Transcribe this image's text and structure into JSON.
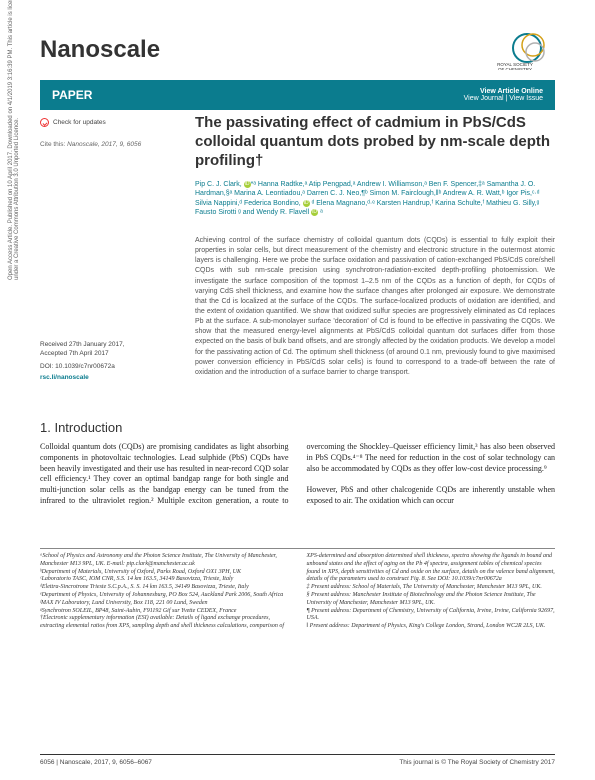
{
  "license_sidebar": "Open Access Article. Published on 10 April 2017. Downloaded on 4/1/2019 3:16:39 PM. This article is licensed under a Creative Commons Attribution 3.0 Unported Licence.",
  "header": {
    "journal": "Nanoscale"
  },
  "paper_bar": {
    "label": "PAPER",
    "view_online": "View Article Online",
    "view_issue": "View Journal | View Issue"
  },
  "check_updates": "Check for updates",
  "cite": {
    "prefix": "Cite this:",
    "ref": "Nanoscale, 2017, 9, 6056"
  },
  "title": "The passivating effect of cadmium in PbS/CdS colloidal quantum dots probed by nm-scale depth profiling†",
  "authors_html": "Pip C. J. Clark, <span class='orcid-icon' data-name='orcid-icon' data-interactable='false'>iD</span>*ᵃ Hanna Radtke,ᵃ Atip Pengpad,ᵃ Andrew I. Williamson,ᵃ Ben F. Spencer,‡ᵃ Samantha J. O. Hardman,§ᵃ Marina A. Leontiadou,ᵃ Darren C. J. Neo,¶ᵇ Simon M. Fairclough,‖ᵇ Andrew A. R. Watt,ᵇ Igor Pis,ᶜ·ᵈ Silvia Nappini,ᵈ Federica Bondino, <span class='orcid-icon' data-name='orcid-icon' data-interactable='false'>iD</span> ᵈ Elena Magnano,ᵈ·ᵉ Karsten Handrup,ᶠ Karina Schulte,ᶠ Mathieu G. Silly,ᵍ Fausto Sirotti ᵍ and Wendy R. Flavell <span class='orcid-icon' data-name='orcid-icon' data-interactable='false'>iD</span> ᵃ",
  "dates": {
    "received": "Received 27th January 2017,",
    "accepted": "Accepted 7th April 2017",
    "doi": "DOI: 10.1039/c7nr00672a",
    "rscli": "rsc.li/nanoscale"
  },
  "abstract": "Achieving control of the surface chemistry of colloidal quantum dots (CQDs) is essential to fully exploit their properties in solar cells, but direct measurement of the chemistry and electronic structure in the outermost atomic layers is challenging. Here we probe the surface oxidation and passivation of cation-exchanged PbS/CdS core/shell CQDs with sub nm-scale precision using synchrotron-radiation-excited depth-profiling photoemission. We investigate the surface composition of the topmost 1–2.5 nm of the CQDs as a function of depth, for CQDs of varying CdS shell thickness, and examine how the surface changes after prolonged air exposure. We demonstrate that the Cd is localized at the surface of the CQDs. The surface-localized products of oxidation are identified, and the extent of oxidation quantified. We show that oxidized sulfur species are progressively eliminated as Cd replaces Pb at the surface. A sub-monolayer surface 'decoration' of Cd is found to be effective in passivating the CQDs. We show that the measured energy-level alignments at PbS/CdS colloidal quantum dot surfaces differ from those expected on the basis of bulk band offsets, and are strongly affected by the oxidation products. We develop a model for the passivating action of Cd. The optimum shell thickness (of around 0.1 nm, previously found to give maximised power conversion efficiency in PbS/CdS solar cells) is found to correspond to a trade-off between the rate of oxidation and the introduction of a surface barrier to charge transport.",
  "intro_heading": "1. Introduction",
  "body_col1": "Colloidal quantum dots (CQDs) are promising candidates as light absorbing components in photovoltaic technologies. Lead sulphide (PbS) CQDs have been heavily investigated and their use has resulted in near-record CQD solar cell efficiency.¹ They cover an optimal bandgap range for both single and multi-junction solar cells as the bandgap energy can be tuned",
  "body_col2": "from the infrared to the ultraviolet region.² Multiple exciton generation, a route to overcoming the Shockley–Queisser efficiency limit,³ has also been observed in PbS CQDs.⁴⁻⁸ The need for reduction in the cost of solar technology can also be accommodated by CQDs as they offer low-cost device processing.⁹",
  "body_para2": "However, PbS and other chalcogenide CQDs are inherently unstable when exposed to air. The oxidation which can occur",
  "affiliations": "ᵃSchool of Physics and Astronomy and the Photon Science Institute, The University of Manchester, Manchester M13 9PL, UK. E-mail: pip.clark@manchester.ac.uk\nᵇDepartment of Materials, University of Oxford, Parks Road, Oxford OX1 3PH, UK\nᶜLaboratorio TASC, IOM CNR, S.S. 14 km 163.5, 34149 Basovizza, Trieste, Italy\nᵈElettra-Sincrotrone Trieste S.C.p.A., S. S. 14 km 163.5, 34149 Basovizza, Trieste, Italy\nᵉDepartment of Physics, University of Johannesburg, PO Box 524, Auckland Park 2006, South Africa\nᶠMAX IV Laboratory, Lund University, Box 118, 221 00 Lund, Sweden\nᵍSynchrotron SOLEIL, BP48, Saint-Aubin, F91192 Gif sur Yvette CEDEX, France\n†Electronic supplementary information (ESI) available: Details of ligand exchange procedures, extracting elemental ratios from XPS, sampling depth and shell thickness calculations, comparison of XPS-determined and absorption",
  "affiliations_col2": "determined shell thickness, spectra showing the ligands in bound and unbound states and the effect of aging on the Pb 4f spectra, assignment tables of chemical species found in XPS, depth sensitivities of Cd and oxide on the surface, details on the valence band alignment, details of the parameters used to construct Fig. 8. See DOI: 10.1039/c7nr00672a\n‡ Present address: School of Materials, The University of Manchester, Manchester M13 9PL, UK.\n§ Present address: Manchester Institute of Biotechnology and the Photon Science Institute, The University of Manchester, Manchester M13 9PL, UK.\n¶ Present address: Department of Chemistry, University of California, Irvine, Irvine, California 92697, USA.\n‖ Present address: Department of Physics, King's College London, Strand, London WC2R 2LS, UK.",
  "footer": {
    "left": "6056 | Nanoscale, 2017, 9, 6056–6067",
    "right": "This journal is © The Royal Society of Chemistry 2017"
  },
  "colors": {
    "teal": "#0b7c8e",
    "logo_gold": "#d4a017",
    "logo_blue": "#0b7c8e"
  }
}
